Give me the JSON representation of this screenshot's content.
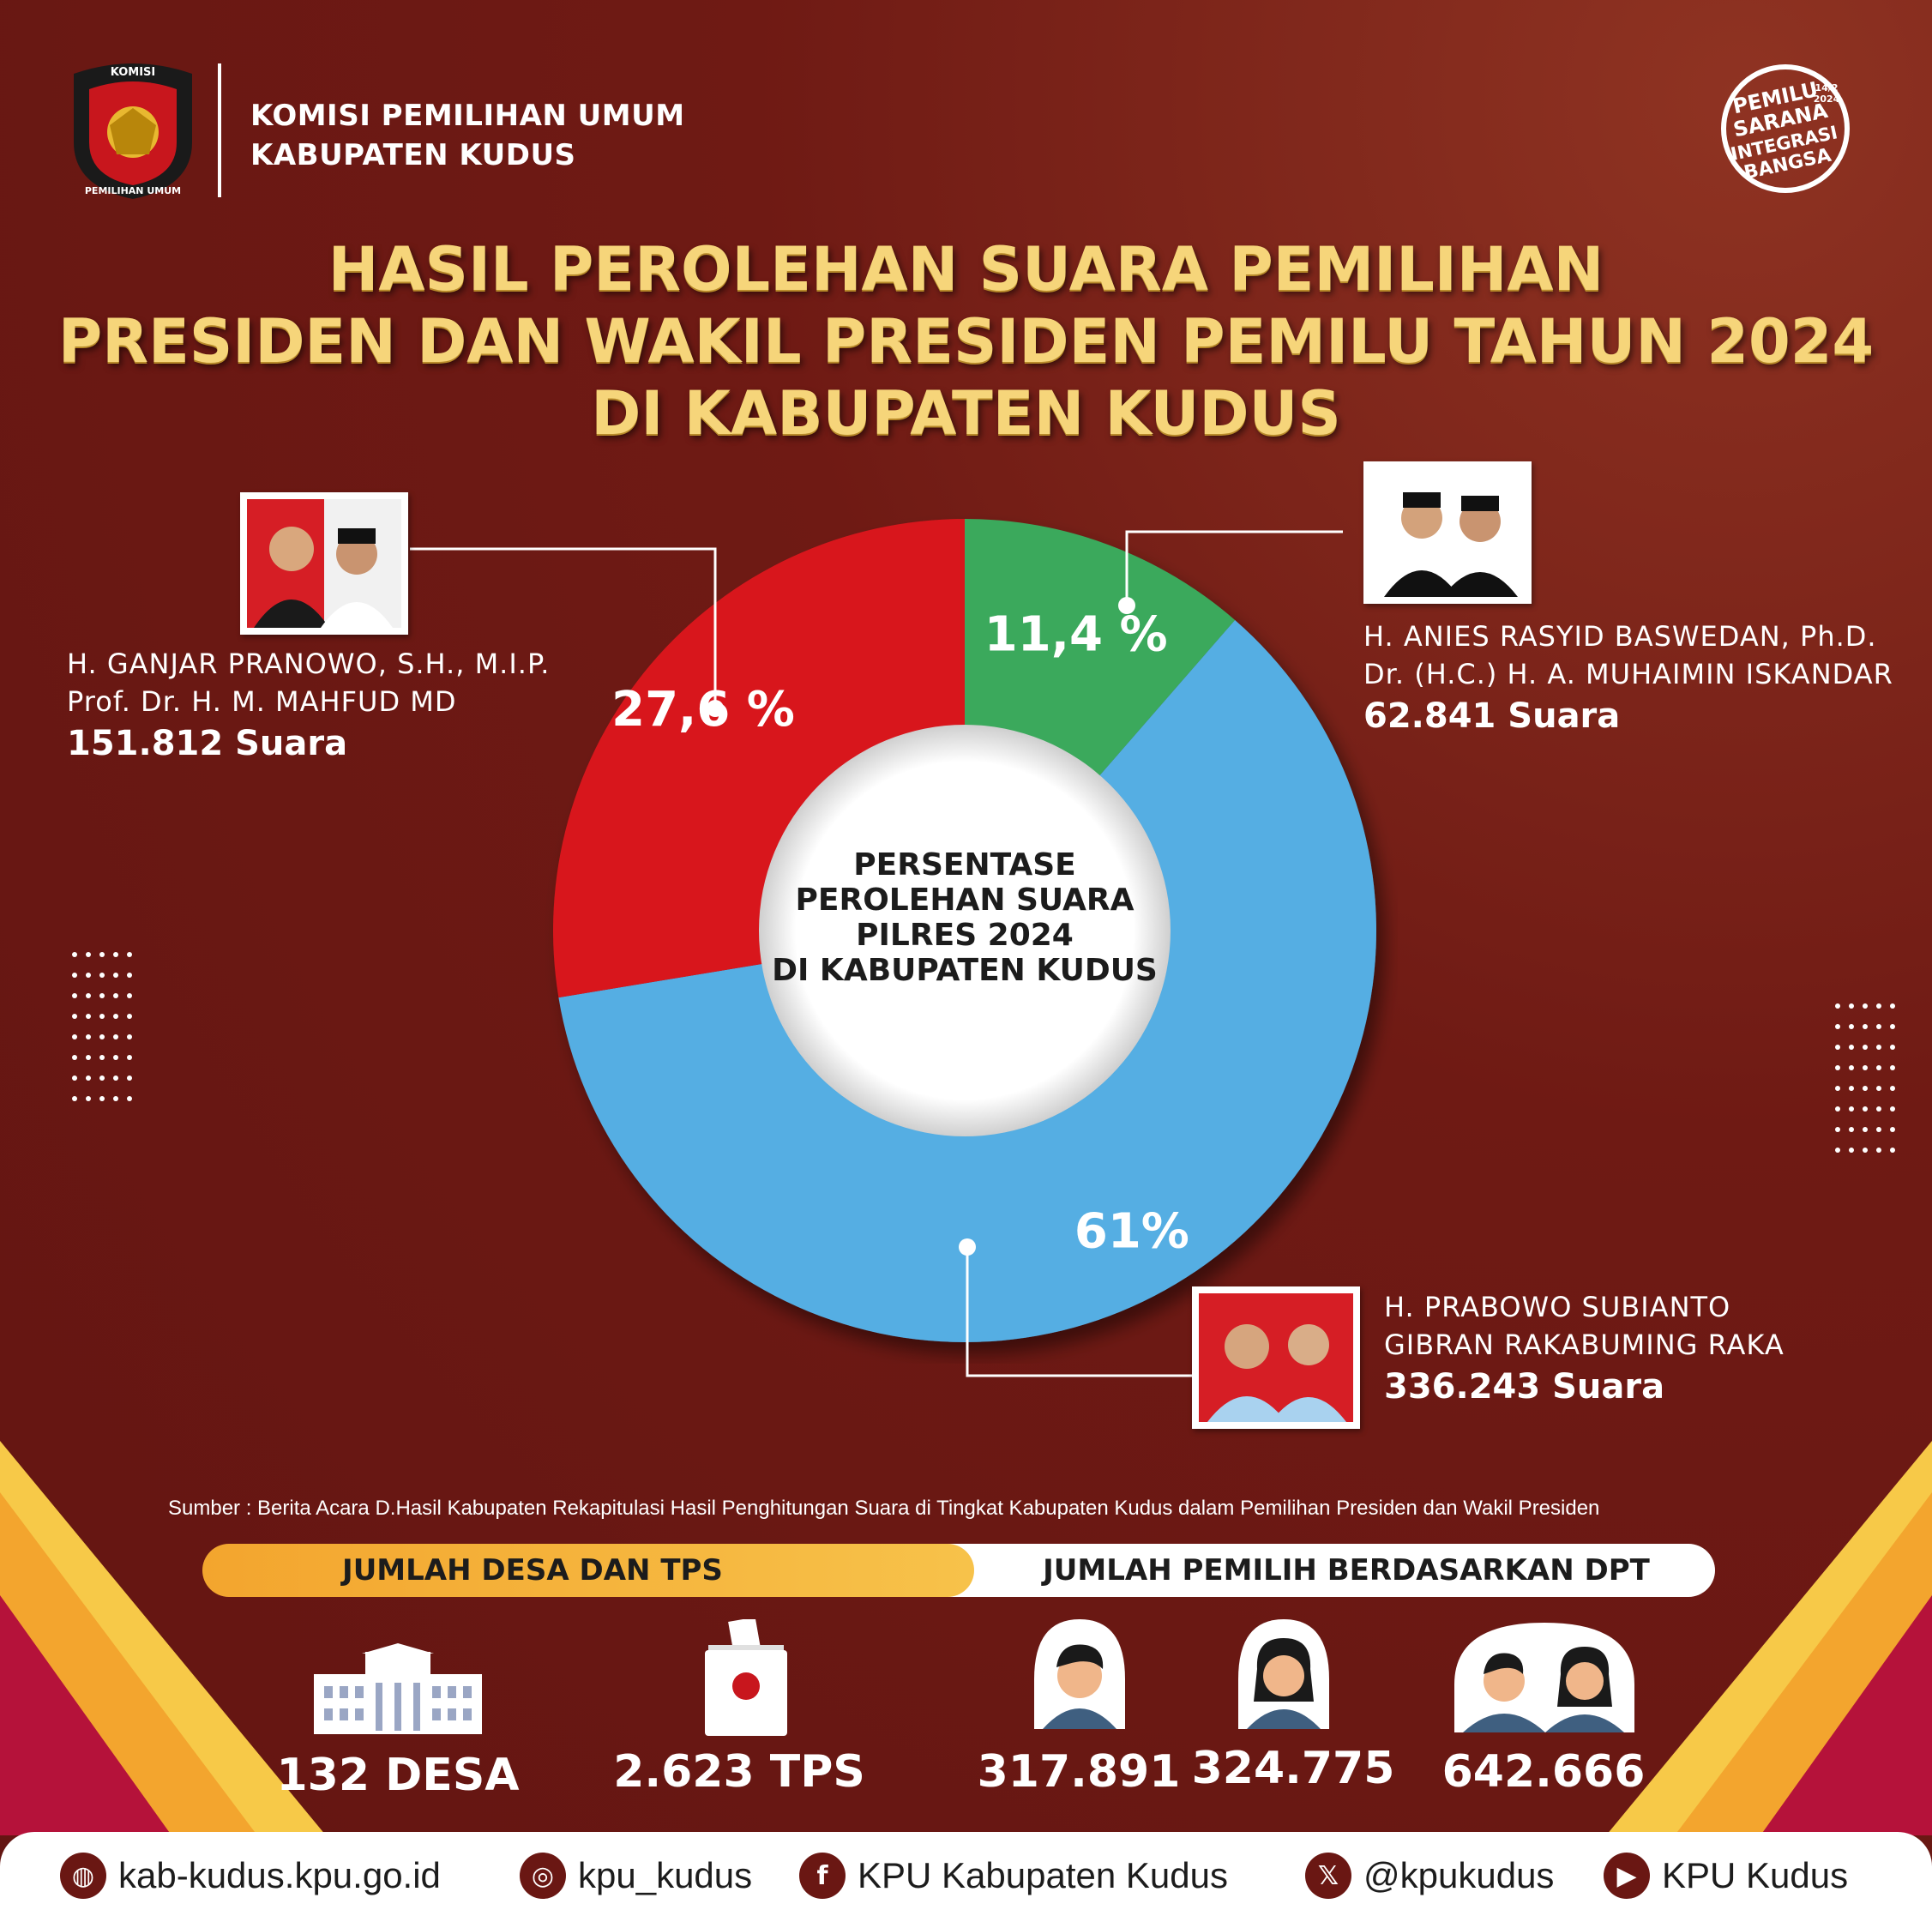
{
  "header": {
    "org_line1": "KOMISI PEMILIHAN UMUM",
    "org_line2": "KABUPATEN KUDUS",
    "logo_top_text": "KOMISI",
    "logo_bottom_text": "PEMILIHAN UMUM",
    "badge_lines": [
      "PEMILU",
      "SARANA",
      "INTEGRASI",
      "BANGSA"
    ],
    "badge_date_1": "14/2",
    "badge_date_2": "2024"
  },
  "title": {
    "line1": "HASIL PEROLEHAN SUARA PEMILIHAN",
    "line2": "PRESIDEN DAN WAKIL PRESIDEN PEMILU TAHUN 2024",
    "line3": "DI KABUPATEN KUDUS"
  },
  "chart_data": {
    "type": "pie",
    "title": "PERSENTASE PEROLEHAN SUARA PILRES 2024 DI KABUPATEN KUDUS",
    "center_lines": [
      "PERSENTASE",
      "PEROLEHAN SUARA",
      "PILRES 2024",
      "DI KABUPATEN KUDUS"
    ],
    "series": [
      {
        "candidate_1": "H. ANIES RASYID BASWEDAN, Ph.D.",
        "candidate_2": "Dr. (H.C.) H. A. MUHAIMIN ISKANDAR",
        "votes": 62841,
        "votes_label": "62.841 Suara",
        "percent": 11.4,
        "percent_label": "11,4 %",
        "color": "#3aa95c"
      },
      {
        "candidate_1": "H. PRABOWO SUBIANTO",
        "candidate_2": "GIBRAN RAKABUMING RAKA",
        "votes": 336243,
        "votes_label": "336.243 Suara",
        "percent": 61,
        "percent_label": "61%",
        "color": "#55aee3"
      },
      {
        "candidate_1": "H. GANJAR PRANOWO, S.H., M.I.P.",
        "candidate_2": "Prof. Dr. H. M. MAHFUD MD",
        "votes": 151812,
        "votes_label": "151.812 Suara",
        "percent": 27.6,
        "percent_label": "27,6 %",
        "color": "#d8161d"
      }
    ]
  },
  "source": "Sumber : Berita Acara D.Hasil Kabupaten Rekapitulasi Hasil Penghitungan Suara di Tingkat Kabupaten Kudus dalam Pemilihan Presiden dan Wakil Presiden",
  "stats": {
    "left_header": "JUMLAH DESA DAN TPS",
    "right_header": "JUMLAH PEMILIH BERDASARKAN DPT",
    "desa": "132 DESA",
    "tps": "2.623 TPS",
    "male": "317.891",
    "female": "324.775",
    "total": "642.666"
  },
  "footer": {
    "website": "kab-kudus.kpu.go.id",
    "instagram": "kpu_kudus",
    "facebook": "KPU Kabupaten Kudus",
    "x": "@kpukudus",
    "youtube": "KPU Kudus"
  },
  "colors": {
    "bg": "#6a1713",
    "title_gold": "#f6d57a",
    "accent_gold": "#f3a52e"
  }
}
